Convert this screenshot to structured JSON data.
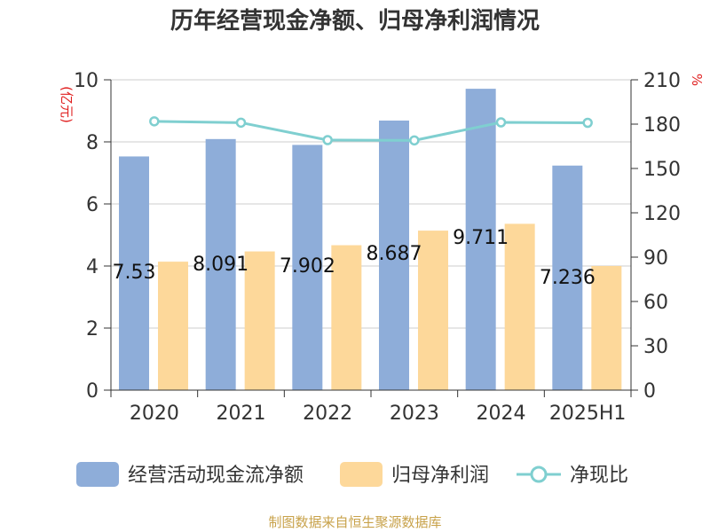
{
  "chart_data": {
    "type": "bar",
    "title": "历年经营现金净额、归母净利润情况",
    "categories": [
      "2020",
      "2021",
      "2022",
      "2023",
      "2024",
      "2025H1"
    ],
    "left_axis": {
      "label": "(亿元)",
      "range": [
        0,
        10
      ],
      "ticks": [
        "0",
        "2",
        "4",
        "6",
        "8",
        "10"
      ]
    },
    "right_axis": {
      "label": "%",
      "range": [
        0,
        210
      ],
      "ticks": [
        "0",
        "30",
        "60",
        "90",
        "120",
        "150",
        "180",
        "210"
      ]
    },
    "series": [
      {
        "name": "经营活动现金流净额",
        "type": "bar",
        "axis": "left",
        "color": "#8eadd9",
        "values": [
          7.53,
          8.091,
          7.902,
          8.687,
          9.711,
          7.236
        ]
      },
      {
        "name": "归母净利润",
        "type": "bar",
        "axis": "left",
        "color": "#fdd89a",
        "values": [
          4.14,
          4.47,
          4.67,
          5.14,
          5.36,
          4.0
        ]
      },
      {
        "name": "净现比",
        "type": "line",
        "axis": "right",
        "color": "#7fcfd0",
        "values": [
          181.9,
          181.0,
          169.2,
          169.0,
          181.2,
          180.9
        ]
      }
    ],
    "data_labels": [
      "7.53",
      "8.091",
      "7.902",
      "8.687",
      "9.711",
      "7.236"
    ],
    "grid": true,
    "legend_position": "bottom"
  },
  "footer": {
    "source": "制图数据来自恒生聚源数据库"
  }
}
